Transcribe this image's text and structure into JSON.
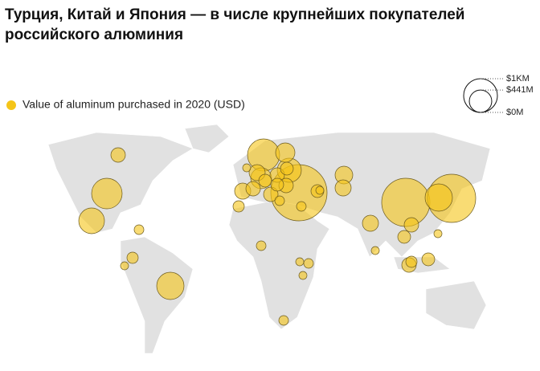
{
  "chart_data": {
    "type": "bubble-map",
    "title": "Турция, Китай и Япония — в числе крупнейших покупателей российского алюминия",
    "legend": "Value of aluminum purchased in 2020 (USD)",
    "color": "#f5c518",
    "size_legend": [
      {
        "value": 1000,
        "label": "$1KM"
      },
      {
        "value": 441,
        "label": "$441M"
      },
      {
        "value": 0,
        "label": "$0M"
      }
    ],
    "values": [
      184,
      819,
      580,
      82,
      111,
      57,
      655,
      82,
      907,
      327,
      57,
      227,
      383,
      184,
      145,
      184,
      227,
      184,
      145,
      145,
      184,
      82,
      2778,
      510,
      274,
      227,
      145,
      57,
      82,
      111,
      227,
      57,
      2041,
      2041,
      655,
      184,
      145,
      57,
      111,
      184,
      145,
      82,
      57,
      82,
      57
    ]
  }
}
